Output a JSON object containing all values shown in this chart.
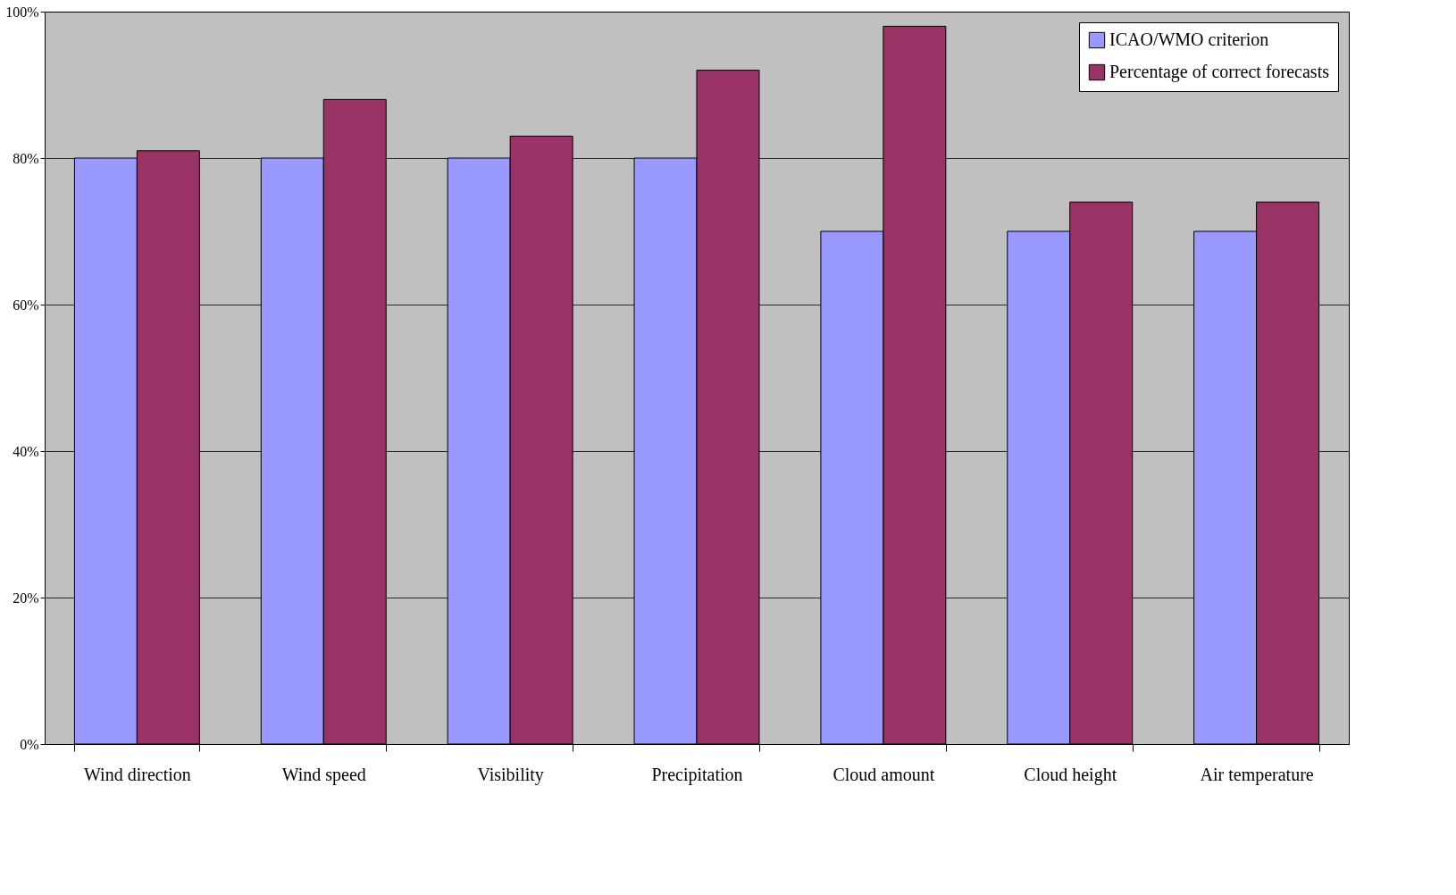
{
  "chart_data": {
    "type": "bar",
    "categories": [
      "Wind direction",
      "Wind speed",
      "Visibility",
      "Precipitation",
      "Cloud amount",
      "Cloud height",
      "Air temperature"
    ],
    "series": [
      {
        "name": "ICAO/WMO criterion",
        "color": "#9999ff",
        "values": [
          80,
          80,
          80,
          80,
          70,
          70,
          70
        ]
      },
      {
        "name": "Percentage of correct forecasts",
        "color": "#993366",
        "values": [
          81,
          88,
          83,
          92,
          98,
          74,
          74
        ]
      }
    ],
    "ylim": [
      0,
      100
    ],
    "yticks": [
      {
        "value": 0,
        "label": "0%"
      },
      {
        "value": 20,
        "label": "20%"
      },
      {
        "value": 40,
        "label": "40%"
      },
      {
        "value": 60,
        "label": "60%"
      },
      {
        "value": 80,
        "label": "80%"
      },
      {
        "value": 100,
        "label": "100%"
      }
    ],
    "grid": "y",
    "legend": "top right"
  }
}
